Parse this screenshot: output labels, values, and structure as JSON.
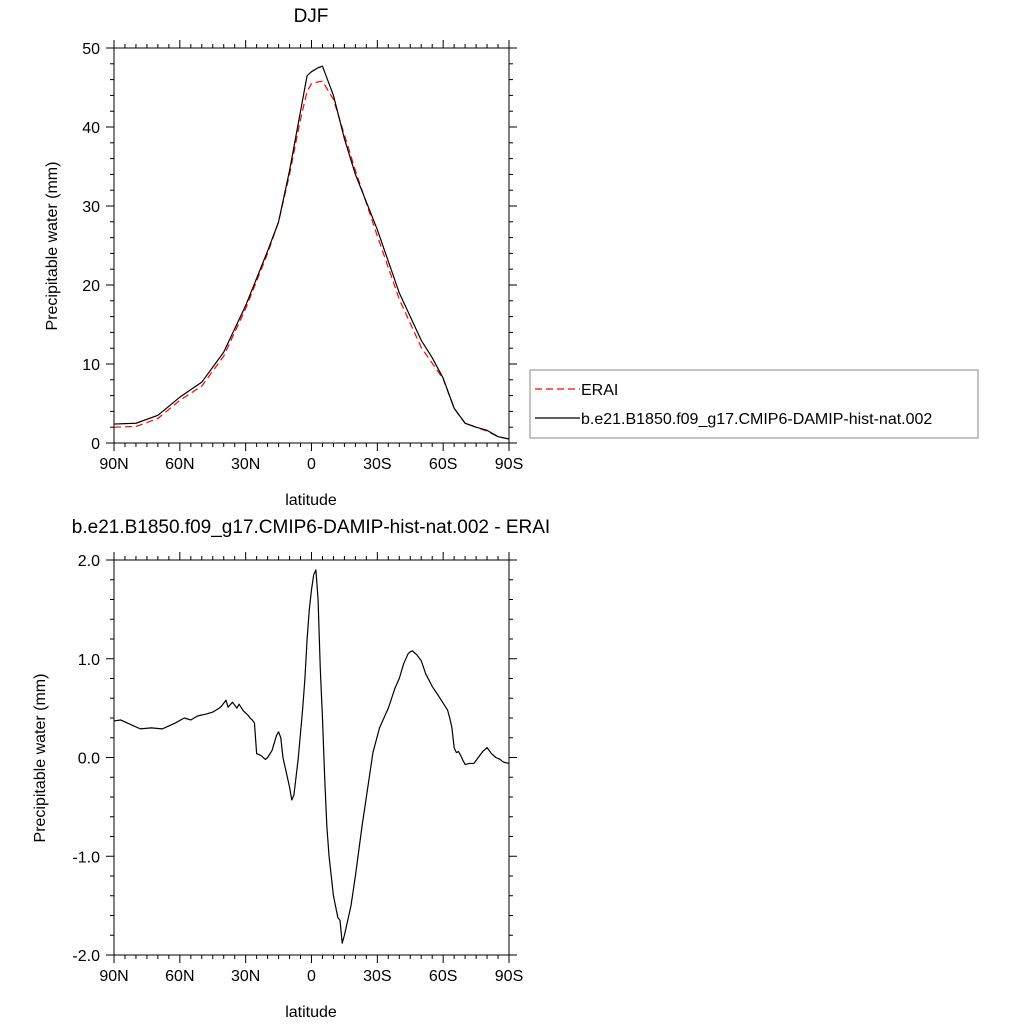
{
  "chart_data": [
    {
      "type": "line",
      "title": "DJF",
      "xlabel": "latitude",
      "ylabel": "Precipitable water (mm)",
      "xlim": [
        90,
        -90
      ],
      "ylim": [
        0,
        50
      ],
      "xticks": [
        {
          "value": 90,
          "label": "90N"
        },
        {
          "value": 60,
          "label": "60N"
        },
        {
          "value": 30,
          "label": "30N"
        },
        {
          "value": 0,
          "label": "0"
        },
        {
          "value": -30,
          "label": "30S"
        },
        {
          "value": -60,
          "label": "60S"
        },
        {
          "value": -90,
          "label": "90S"
        }
      ],
      "yticks": [
        {
          "value": 0,
          "label": "0"
        },
        {
          "value": 10,
          "label": "10"
        },
        {
          "value": 20,
          "label": "20"
        },
        {
          "value": 30,
          "label": "30"
        },
        {
          "value": 40,
          "label": "40"
        },
        {
          "value": 50,
          "label": "50"
        }
      ],
      "grid": false,
      "legend": "right",
      "series": [
        {
          "name": "ERAI",
          "color": "#ff0000",
          "dash": "dashed",
          "x": [
            90,
            80,
            70,
            60,
            50,
            40,
            30,
            20,
            15,
            10,
            5,
            2,
            0,
            -3,
            -5,
            -10,
            -15,
            -20,
            -30,
            -40,
            -50,
            -55,
            -60,
            -65,
            -70,
            -75,
            -80,
            -85,
            -90
          ],
          "y": [
            2.0,
            2.1,
            3.1,
            5.4,
            7.2,
            11.0,
            17.0,
            24.0,
            28.0,
            34.0,
            41.0,
            44.5,
            45.5,
            45.7,
            45.8,
            43.5,
            39.0,
            34.5,
            26.2,
            18.2,
            12.1,
            10.1,
            8.1,
            4.4,
            2.5,
            2.0,
            1.5,
            0.8,
            0.5
          ]
        },
        {
          "name": "b.e21.B1850.f09_g17.CMIP6-DAMIP-hist-nat.002",
          "color": "#000000",
          "dash": "solid",
          "x": [
            90,
            80,
            70,
            60,
            50,
            40,
            30,
            20,
            15,
            10,
            5,
            2,
            0,
            -3,
            -5,
            -10,
            -15,
            -20,
            -30,
            -40,
            -50,
            -55,
            -60,
            -65,
            -70,
            -75,
            -80,
            -85,
            -90
          ],
          "y": [
            2.4,
            2.5,
            3.5,
            5.8,
            7.7,
            11.5,
            17.4,
            24.3,
            28.0,
            34.5,
            42.0,
            46.5,
            47.0,
            47.5,
            47.7,
            44.0,
            38.5,
            34.0,
            27.0,
            19.0,
            13.0,
            10.8,
            8.2,
            4.4,
            2.5,
            2.0,
            1.6,
            0.8,
            0.5
          ]
        }
      ]
    },
    {
      "type": "line",
      "title": "b.e21.B1850.f09_g17.CMIP6-DAMIP-hist-nat.002 - ERAI",
      "xlabel": "latitude",
      "ylabel": "Precipitable water (mm)",
      "xlim": [
        90,
        -90
      ],
      "ylim": [
        -2.0,
        2.0
      ],
      "xticks": [
        {
          "value": 90,
          "label": "90N"
        },
        {
          "value": 60,
          "label": "60N"
        },
        {
          "value": 30,
          "label": "30N"
        },
        {
          "value": 0,
          "label": "0"
        },
        {
          "value": -30,
          "label": "30S"
        },
        {
          "value": -60,
          "label": "60S"
        },
        {
          "value": -90,
          "label": "90S"
        }
      ],
      "yticks": [
        {
          "value": -2.0,
          "label": "-2.0"
        },
        {
          "value": -1.0,
          "label": "-1.0"
        },
        {
          "value": 0.0,
          "label": "0.0"
        },
        {
          "value": 1.0,
          "label": "1.0"
        },
        {
          "value": 2.0,
          "label": "2.0"
        }
      ],
      "grid": false,
      "series": [
        {
          "color": "#000000",
          "dash": "solid",
          "x": [
            90,
            87,
            83,
            78,
            73,
            68,
            65,
            62,
            58,
            55,
            52,
            48,
            45,
            42,
            41,
            39,
            38,
            36,
            34,
            33,
            31,
            29,
            28,
            27,
            26,
            25,
            23,
            21,
            20,
            18,
            16,
            15,
            14,
            13,
            11,
            10,
            9,
            8,
            6,
            4,
            3,
            2,
            1,
            0,
            -1,
            -2,
            -3,
            -4,
            -5,
            -6,
            -7,
            -8,
            -10,
            -12,
            -13,
            -14,
            -15,
            -16,
            -17,
            -18,
            -20,
            -23,
            -26,
            -28,
            -31,
            -35,
            -38,
            -40,
            -42,
            -44,
            -45,
            -46,
            -47,
            -48,
            -50,
            -52,
            -55,
            -58,
            -60,
            -62,
            -63,
            -64,
            -65,
            -66,
            -67,
            -68,
            -69,
            -70,
            -72,
            -74,
            -75,
            -76,
            -77,
            -78,
            -80,
            -82,
            -84,
            -86,
            -87,
            -88,
            -90
          ],
          "y": [
            0.37,
            0.38,
            0.34,
            0.29,
            0.3,
            0.29,
            0.32,
            0.35,
            0.4,
            0.38,
            0.42,
            0.44,
            0.46,
            0.5,
            0.52,
            0.58,
            0.51,
            0.56,
            0.5,
            0.54,
            0.47,
            0.43,
            0.4,
            0.38,
            0.35,
            0.04,
            0.02,
            -0.02,
            0.0,
            0.07,
            0.22,
            0.26,
            0.2,
            0.0,
            -0.2,
            -0.3,
            -0.43,
            -0.38,
            0.0,
            0.5,
            0.8,
            1.2,
            1.5,
            1.7,
            1.85,
            1.9,
            1.6,
            0.9,
            0.4,
            -0.2,
            -0.7,
            -1.0,
            -1.4,
            -1.62,
            -1.65,
            -1.88,
            -1.8,
            -1.7,
            -1.6,
            -1.5,
            -1.2,
            -0.7,
            -0.25,
            0.05,
            0.3,
            0.5,
            0.7,
            0.8,
            0.95,
            1.05,
            1.07,
            1.08,
            1.06,
            1.04,
            0.98,
            0.85,
            0.72,
            0.62,
            0.55,
            0.48,
            0.4,
            0.3,
            0.1,
            0.05,
            0.06,
            0.02,
            -0.03,
            -0.07,
            -0.06,
            -0.06,
            -0.03,
            0.0,
            0.03,
            0.06,
            0.1,
            0.04,
            0.0,
            -0.02,
            -0.04,
            -0.05,
            -0.06
          ]
        }
      ]
    }
  ]
}
